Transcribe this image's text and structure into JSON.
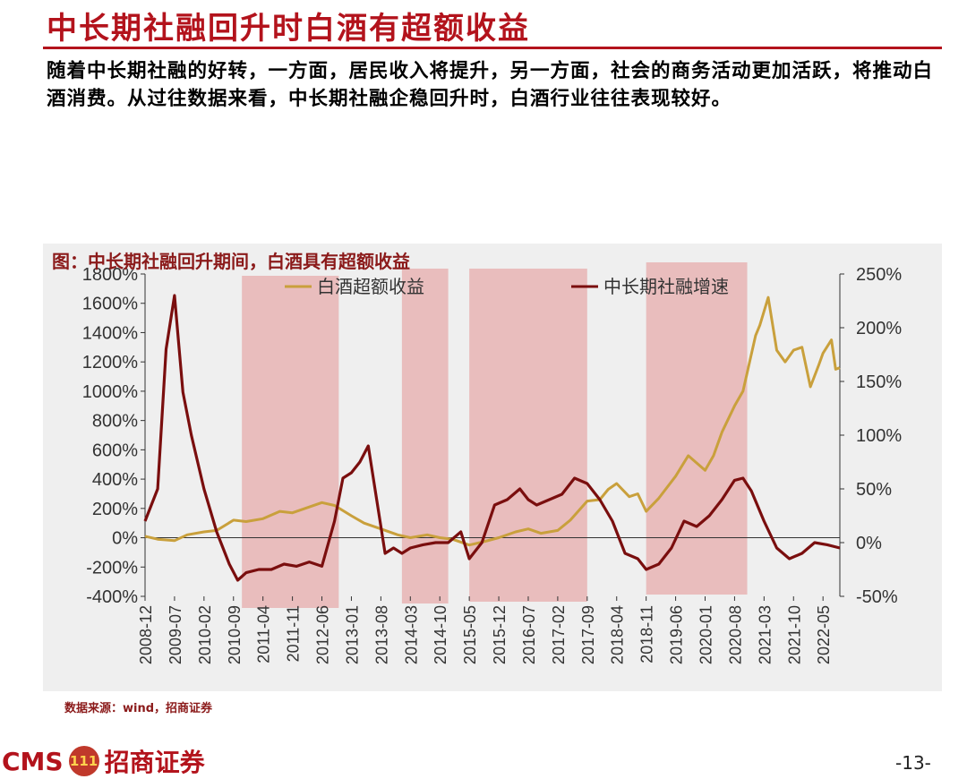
{
  "header": {
    "title": "中长期社融回升时白酒有超额收益",
    "body": "随着中长期社融的好转，一方面，居民收入将提升，另一方面，社会的商务活动更加活跃，将推动白酒消费。从过往数据来看，中长期社融企稳回升时，白酒行业往往表现较好。"
  },
  "chart_data": {
    "type": "line",
    "caption": "图：中长期社融回升期间，白酒具有超额收益",
    "source": "数据来源：wind，招商证券",
    "x_ticks": [
      "2008-12",
      "2009-07",
      "2010-02",
      "2010-09",
      "2011-04",
      "2011-11",
      "2012-06",
      "2013-01",
      "2013-08",
      "2014-03",
      "2014-10",
      "2015-05",
      "2015-12",
      "2016-07",
      "2017-02",
      "2017-09",
      "2018-04",
      "2018-11",
      "2019-06",
      "2020-01",
      "2020-08",
      "2021-03",
      "2021-10",
      "2022-05"
    ],
    "y_left": {
      "min": -400,
      "max": 1800,
      "ticks": [
        -400,
        -200,
        0,
        200,
        400,
        600,
        800,
        1000,
        1200,
        1400,
        1600,
        1800
      ],
      "unit": "%"
    },
    "y_right": {
      "min": -50,
      "max": 250,
      "ticks": [
        -50,
        0,
        50,
        100,
        150,
        200,
        250
      ],
      "unit": "%"
    },
    "shaded_periods": [
      {
        "start": "2010-11",
        "end": "2012-10"
      },
      {
        "start": "2014-01",
        "end": "2014-12"
      },
      {
        "start": "2015-05",
        "end": "2017-09"
      },
      {
        "start": "2018-11",
        "end": "2020-11"
      }
    ],
    "series": [
      {
        "name": "白酒超额收益",
        "axis": "left",
        "color": "#c9a03c",
        "x": [
          "2008-12",
          "2009-03",
          "2009-07",
          "2009-10",
          "2010-02",
          "2010-05",
          "2010-09",
          "2010-12",
          "2011-04",
          "2011-08",
          "2011-11",
          "2012-02",
          "2012-06",
          "2012-09",
          "2013-01",
          "2013-04",
          "2013-08",
          "2013-12",
          "2014-03",
          "2014-07",
          "2014-10",
          "2015-01",
          "2015-05",
          "2015-08",
          "2015-12",
          "2016-04",
          "2016-07",
          "2016-10",
          "2017-02",
          "2017-05",
          "2017-09",
          "2017-12",
          "2018-02",
          "2018-04",
          "2018-07",
          "2018-09",
          "2018-11",
          "2019-02",
          "2019-06",
          "2019-09",
          "2020-01",
          "2020-03",
          "2020-05",
          "2020-08",
          "2020-10",
          "2021-01",
          "2021-02",
          "2021-04",
          "2021-06",
          "2021-08",
          "2021-10",
          "2021-12",
          "2022-02",
          "2022-04",
          "2022-05",
          "2022-07",
          "2022-08",
          "2022-09"
        ],
        "values": [
          10,
          -10,
          -20,
          20,
          40,
          50,
          120,
          110,
          130,
          180,
          170,
          200,
          240,
          220,
          150,
          100,
          60,
          20,
          0,
          20,
          0,
          -10,
          -50,
          -30,
          0,
          40,
          60,
          30,
          50,
          120,
          250,
          260,
          330,
          370,
          280,
          300,
          180,
          270,
          420,
          560,
          460,
          560,
          720,
          900,
          1000,
          1380,
          1450,
          1640,
          1280,
          1200,
          1280,
          1300,
          1030,
          1180,
          1260,
          1350,
          1150,
          1160
        ]
      },
      {
        "name": "中长期社融增速",
        "axis": "right",
        "color": "#7a0e0e",
        "x": [
          "2008-12",
          "2009-03",
          "2009-05",
          "2009-07",
          "2009-09",
          "2009-11",
          "2010-02",
          "2010-05",
          "2010-08",
          "2010-10",
          "2010-12",
          "2011-03",
          "2011-06",
          "2011-09",
          "2011-12",
          "2012-03",
          "2012-06",
          "2012-09",
          "2012-11",
          "2013-01",
          "2013-03",
          "2013-05",
          "2013-07",
          "2013-09",
          "2013-11",
          "2014-01",
          "2014-03",
          "2014-06",
          "2014-09",
          "2014-12",
          "2015-03",
          "2015-05",
          "2015-08",
          "2015-11",
          "2016-02",
          "2016-05",
          "2016-07",
          "2016-09",
          "2016-12",
          "2017-03",
          "2017-06",
          "2017-09",
          "2017-12",
          "2018-03",
          "2018-06",
          "2018-09",
          "2018-11",
          "2019-02",
          "2019-05",
          "2019-08",
          "2019-11",
          "2020-02",
          "2020-05",
          "2020-08",
          "2020-10",
          "2020-12",
          "2021-03",
          "2021-06",
          "2021-09",
          "2021-12",
          "2022-03",
          "2022-06",
          "2022-09"
        ],
        "values": [
          20,
          50,
          180,
          230,
          140,
          100,
          50,
          10,
          -20,
          -35,
          -28,
          -25,
          -25,
          -20,
          -22,
          -18,
          -22,
          20,
          60,
          65,
          75,
          90,
          40,
          -10,
          -5,
          -10,
          -5,
          -2,
          0,
          0,
          10,
          -15,
          0,
          35,
          40,
          50,
          40,
          35,
          40,
          45,
          60,
          55,
          40,
          20,
          -10,
          -15,
          -25,
          -20,
          -5,
          20,
          15,
          25,
          40,
          58,
          60,
          48,
          20,
          -5,
          -15,
          -10,
          0,
          -2,
          -5
        ]
      }
    ]
  },
  "footer": {
    "brand": "CMS",
    "logo_glyph": "111",
    "company": "招商证券",
    "page": "-13-"
  },
  "colors": {
    "accent": "#b3131c",
    "shade": "#e8b4b4"
  }
}
